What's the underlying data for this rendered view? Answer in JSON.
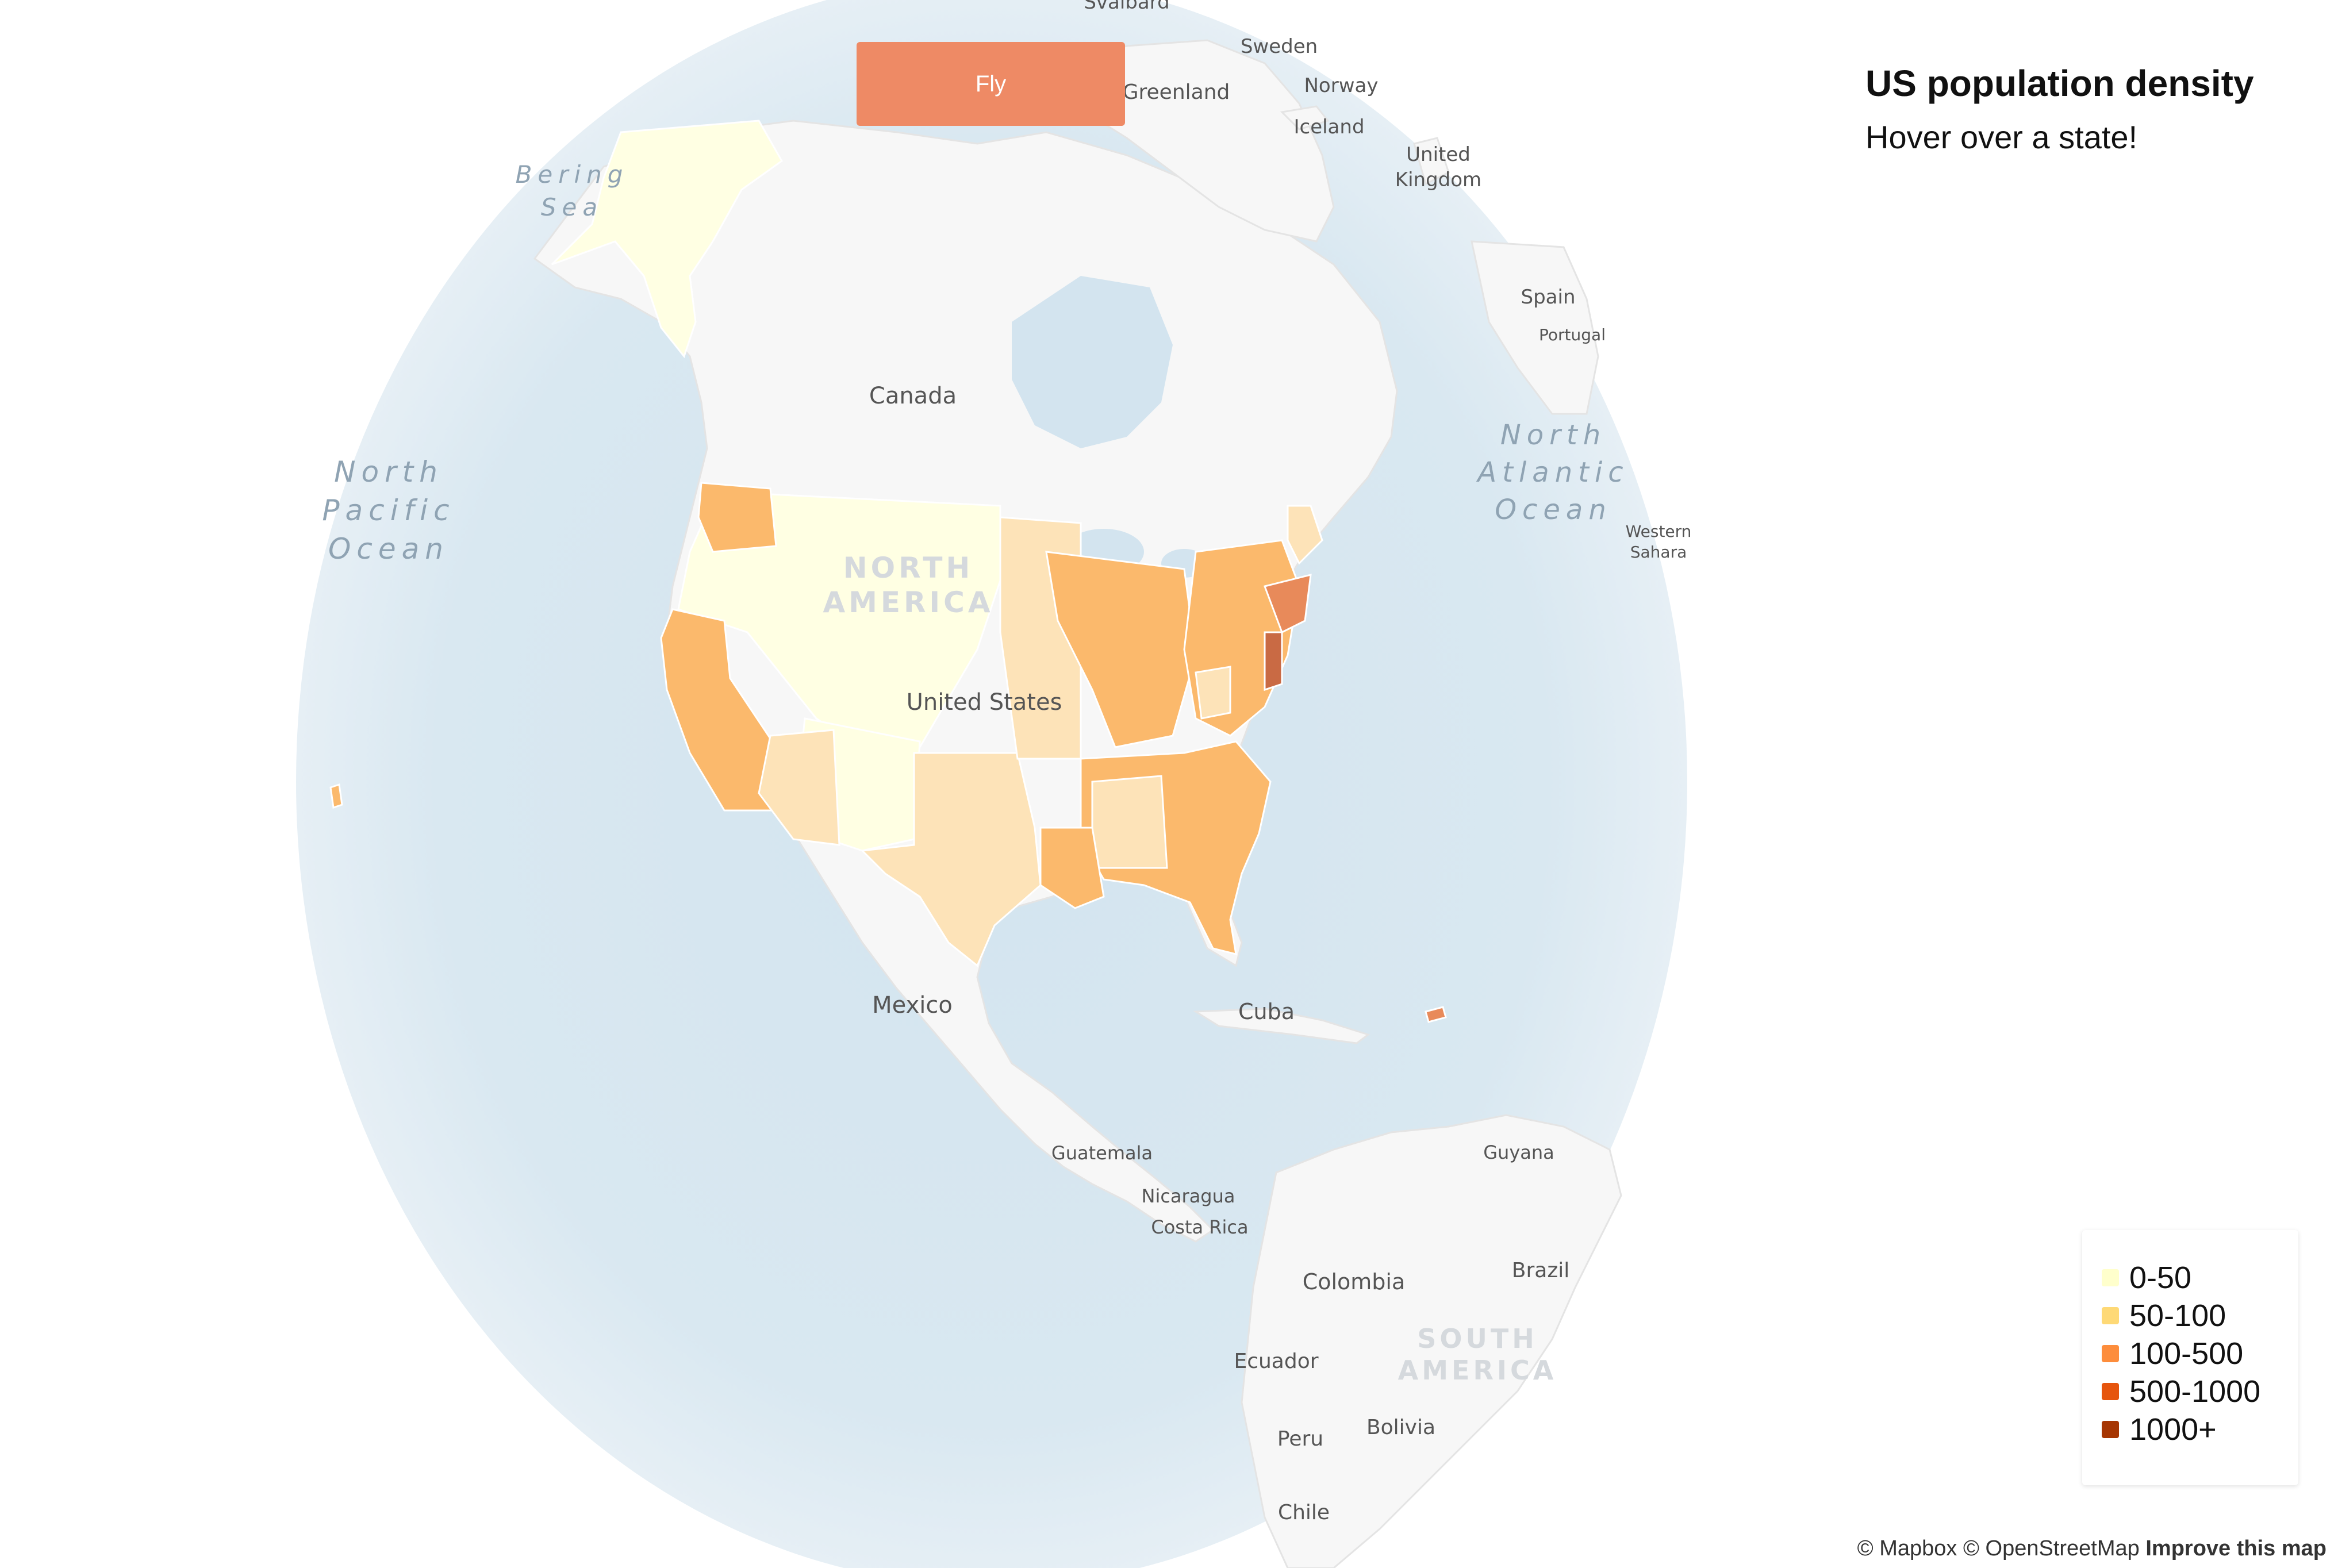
{
  "button": {
    "fly_label": "Fly"
  },
  "panel": {
    "title": "US population density",
    "subtitle": "Hover over a state!"
  },
  "map_labels": {
    "svalbard": "Svalbard",
    "sweden": "Sweden",
    "norway": "Norway",
    "greenland": "Greenland",
    "iceland": "Iceland",
    "united_kingdom_1": "United",
    "united_kingdom_2": "Kingdom",
    "spain": "Spain",
    "portugal": "Portugal",
    "western_sahara_1": "Western",
    "western_sahara_2": "Sahara",
    "bering_1": "Bering",
    "bering_2": "Sea",
    "canada": "Canada",
    "north_pacific_1": "North",
    "north_pacific_2": "Pacific",
    "north_pacific_3": "Ocean",
    "north_atlantic_1": "North",
    "north_atlantic_2": "Atlantic",
    "north_atlantic_3": "Ocean",
    "north_america_1": "NORTH",
    "north_america_2": "AMERICA",
    "united_states": "United States",
    "mexico": "Mexico",
    "cuba": "Cuba",
    "guatemala": "Guatemala",
    "nicaragua": "Nicaragua",
    "costa_rica": "Costa Rica",
    "guyana": "Guyana",
    "colombia": "Colombia",
    "brazil": "Brazil",
    "south_america_1": "SOUTH",
    "south_america_2": "AMERICA",
    "ecuador": "Ecuador",
    "peru": "Peru",
    "bolivia": "Bolivia",
    "chile": "Chile"
  },
  "legend": [
    {
      "label": "0-50",
      "color": "#ffffcc"
    },
    {
      "label": "50-100",
      "color": "#fed976"
    },
    {
      "label": "100-500",
      "color": "#fd8d3c"
    },
    {
      "label": "500-1000",
      "color": "#e6550d"
    },
    {
      "label": "1000+",
      "color": "#a63603"
    }
  ],
  "attribution": {
    "mapbox": "© Mapbox",
    "osm": "© OpenStreetMap",
    "improve": "Improve this map"
  }
}
